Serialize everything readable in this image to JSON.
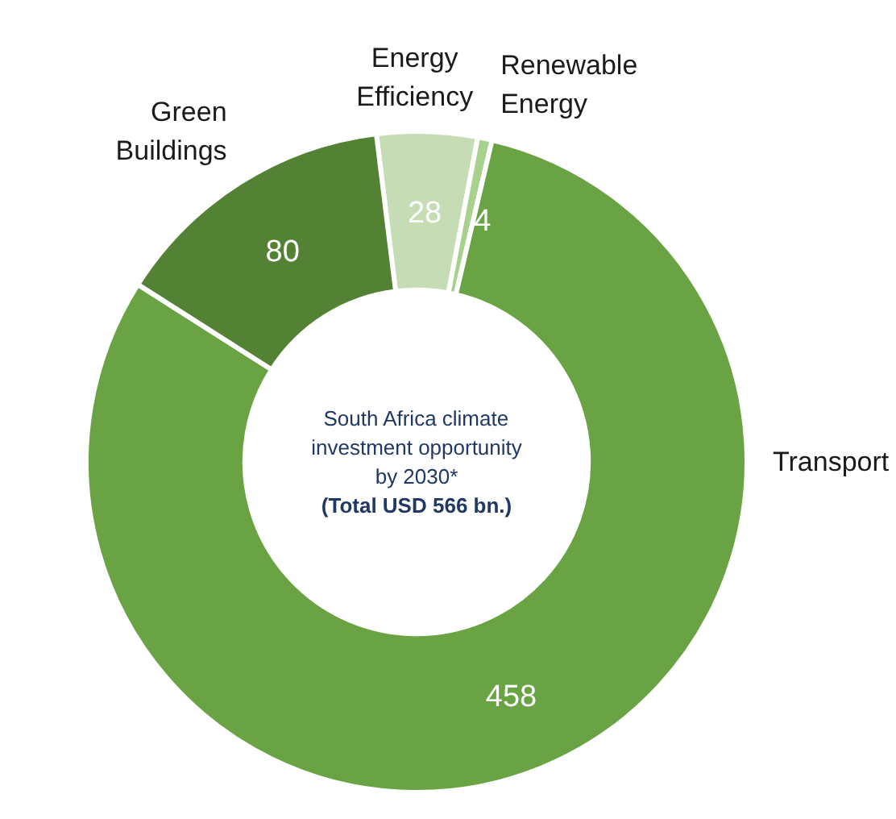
{
  "chart_data": {
    "type": "donut",
    "categories": [
      "Energy Efficiency",
      "Renewable Energy",
      "Transport",
      "Green Buildings"
    ],
    "values": [
      28,
      4,
      458,
      80
    ],
    "colors": [
      "#c5dcb4",
      "#a9d18e",
      "#6aa343",
      "#548235"
    ],
    "data_labels": true,
    "annotations": [
      "South Africa climate\ninvestment opportunity\nby 2030*",
      "(Total USD 566 bn.)"
    ]
  }
}
